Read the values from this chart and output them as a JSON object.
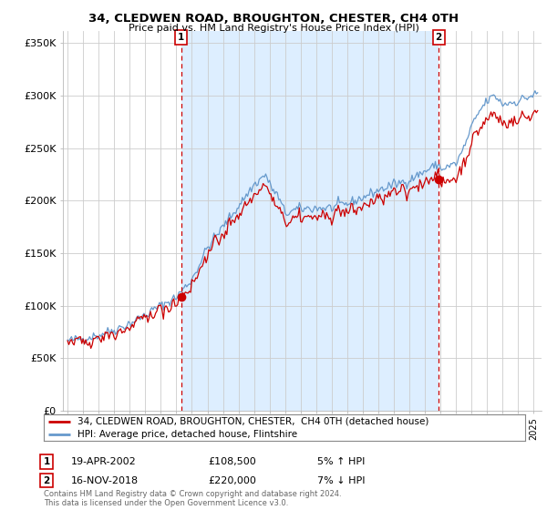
{
  "title": "34, CLEDWEN ROAD, BROUGHTON, CHESTER, CH4 0TH",
  "subtitle": "Price paid vs. HM Land Registry's House Price Index (HPI)",
  "ylabel_ticks": [
    "£0",
    "£50K",
    "£100K",
    "£150K",
    "£200K",
    "£250K",
    "£300K",
    "£350K"
  ],
  "ytick_vals": [
    0,
    50000,
    100000,
    150000,
    200000,
    250000,
    300000,
    350000
  ],
  "ylim": [
    0,
    362000
  ],
  "xlim_start": 1994.7,
  "xlim_end": 2025.5,
  "legend_line1": "34, CLEDWEN ROAD, BROUGHTON, CHESTER,  CH4 0TH (detached house)",
  "legend_line2": "HPI: Average price, detached house, Flintshire",
  "sale1_x": 2002.3,
  "sale1_y": 108500,
  "sale2_x": 2018.88,
  "sale2_y": 220000,
  "ann1_date": "19-APR-2002",
  "ann1_price": "£108,500",
  "ann1_pct": "5% ↑ HPI",
  "ann2_date": "16-NOV-2018",
  "ann2_price": "£220,000",
  "ann2_pct": "7% ↓ HPI",
  "footer": "Contains HM Land Registry data © Crown copyright and database right 2024.\nThis data is licensed under the Open Government Licence v3.0.",
  "line_color_red": "#cc0000",
  "line_color_blue": "#6699cc",
  "fill_color": "#ddeeff",
  "vline_color": "#cc0000",
  "background_color": "#ffffff",
  "grid_color": "#cccccc"
}
